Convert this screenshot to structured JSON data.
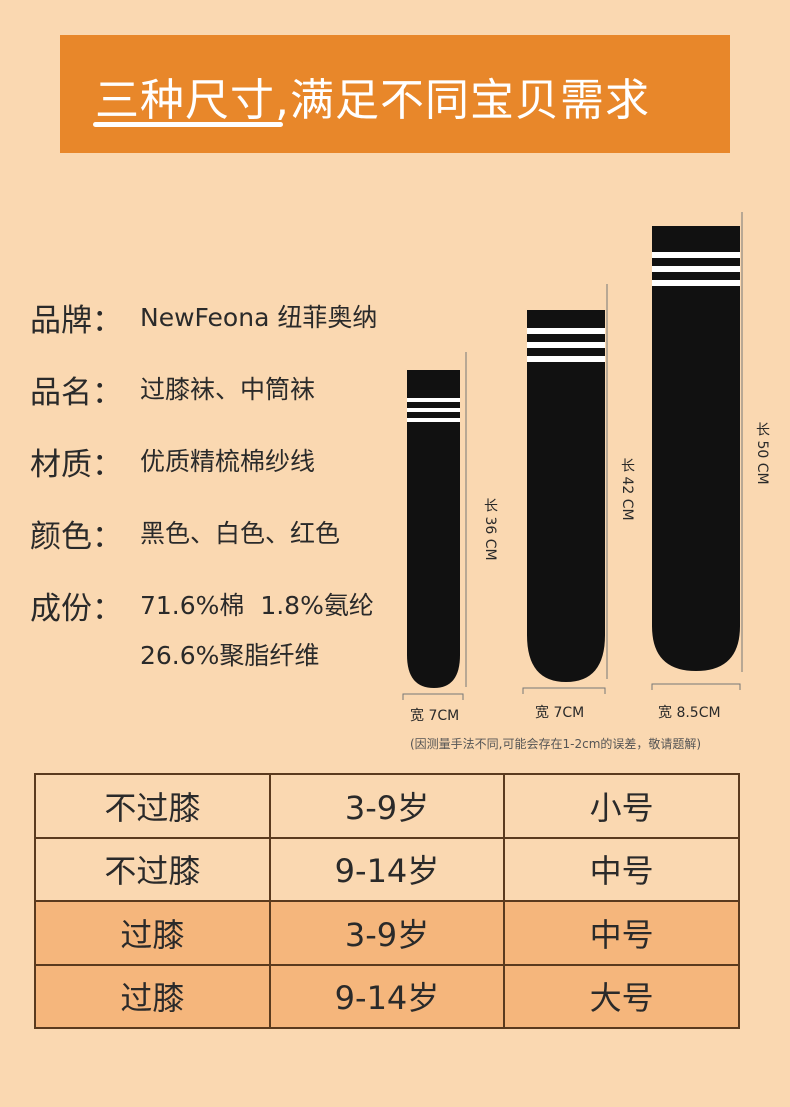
{
  "banner": {
    "title": "三种尺寸,满足不同宝贝需求"
  },
  "specs": [
    {
      "label": "品牌：",
      "value": [
        "NewFeona 纽菲奥纳"
      ]
    },
    {
      "label": "品名：",
      "value": [
        "过膝袜、中筒袜"
      ]
    },
    {
      "label": "材质：",
      "value": [
        "优质精梳棉纱线"
      ]
    },
    {
      "label": "颜色：",
      "value": [
        "黑色、白色、红色"
      ]
    },
    {
      "label": "成份：",
      "value": [
        "71.6%棉  1.8%氨纶",
        "26.6%聚脂纤维"
      ]
    }
  ],
  "socks": [
    {
      "length": "长 36 CM",
      "width": "宽 7CM"
    },
    {
      "length": "长 42 CM",
      "width": "宽 7CM"
    },
    {
      "length": "长 50 CM",
      "width": "宽 8.5CM"
    }
  ],
  "note": "(因测量手法不同,可能会存在1-2cm的误差，敬请题解)",
  "table": {
    "rows": [
      [
        "不过膝",
        "3-9岁",
        "小号"
      ],
      [
        "不过膝",
        "9-14岁",
        "中号"
      ],
      [
        "过膝",
        "3-9岁",
        "中号"
      ],
      [
        "过膝",
        "9-14岁",
        "大号"
      ]
    ]
  }
}
